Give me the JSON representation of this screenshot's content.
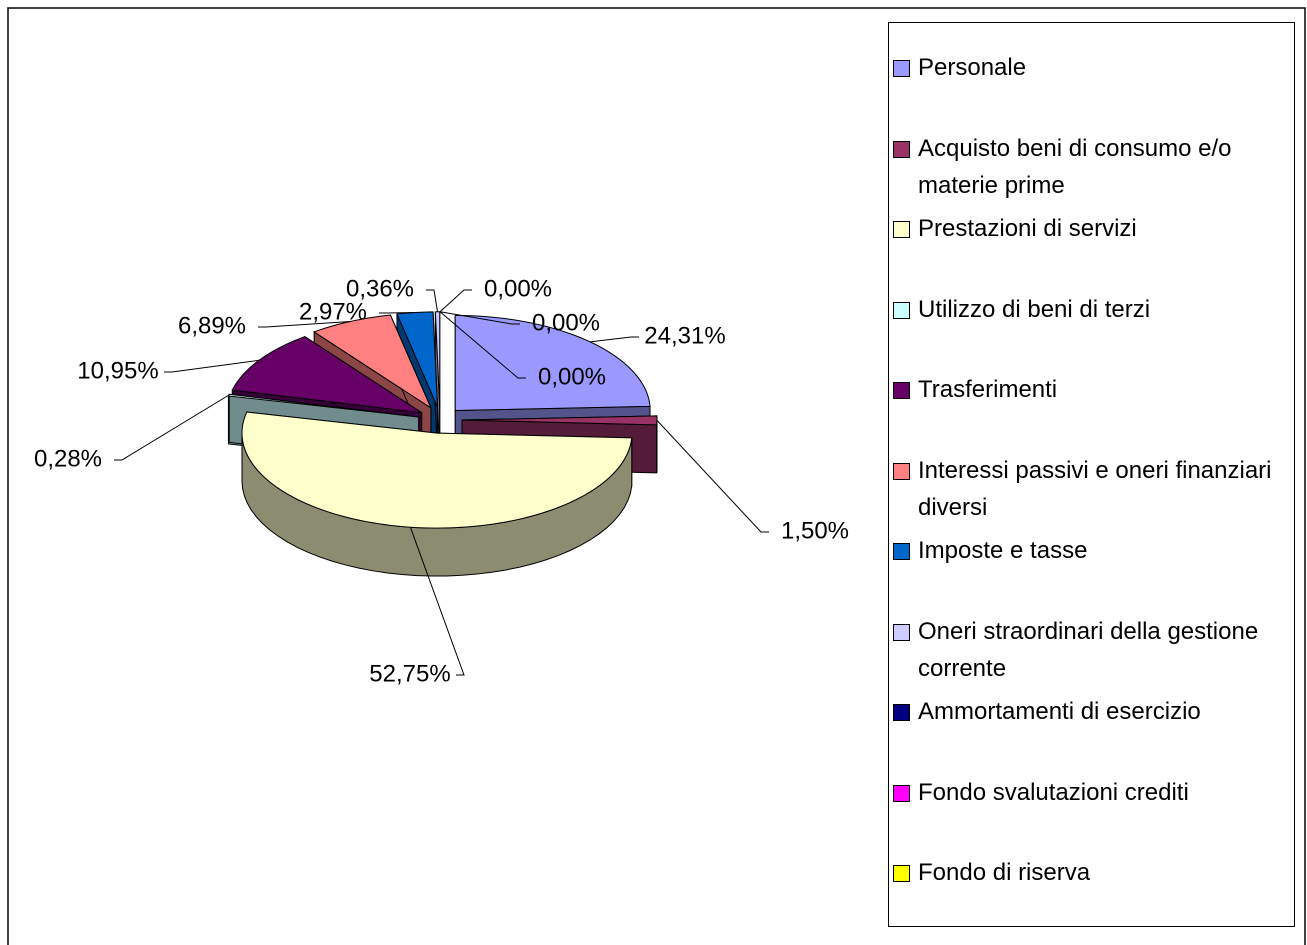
{
  "chart_data": {
    "type": "pie",
    "categories": [
      "Personale",
      "Acquisto beni di consumo e/o materie prime",
      "Prestazioni di servizi",
      "Utilizzo di beni di terzi",
      "Trasferimenti",
      "Interessi passivi e oneri finanziari diversi",
      "Imposte e tasse",
      "Oneri straordinari della gestione corrente",
      "Ammortamenti di esercizio",
      "Fondo svalutazioni crediti",
      "Fondo di riserva"
    ],
    "values": [
      24.31,
      1.5,
      52.75,
      0.28,
      10.95,
      6.89,
      2.97,
      0.36,
      0.0,
      0.0,
      0.0
    ],
    "value_labels": [
      "24,31%",
      "1,50%",
      "52,75%",
      "0,28%",
      "10,95%",
      "6,89%",
      "2,97%",
      "0,36%",
      "0,00%",
      "0,00%",
      "0,00%"
    ],
    "colors": [
      "#9999ff",
      "#993366",
      "#ffffcc",
      "#ccffff",
      "#660066",
      "#ff8080",
      "#0066cc",
      "#ccccff",
      "#000080",
      "#ff00ff",
      "#ffff00"
    ],
    "legend": "right"
  }
}
